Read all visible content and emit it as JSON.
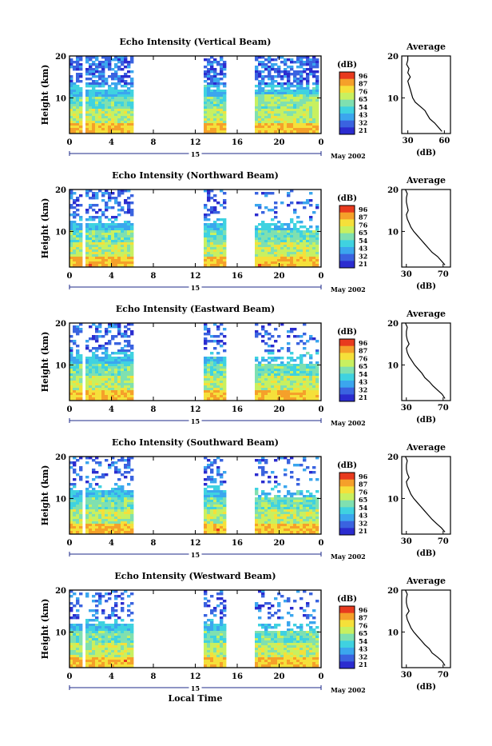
{
  "panels": [
    {
      "title": "Echo Intensity (Vertical Beam)",
      "cbar_ticks": [
        "96",
        "87",
        "76",
        "65",
        "54",
        "43",
        "32",
        "21"
      ],
      "avg_xticks": [
        "30",
        "60"
      ],
      "avg_xrange": [
        25,
        65
      ]
    },
    {
      "title": "Echo Intensity (Northward Beam)",
      "cbar_ticks": [
        "96",
        "87",
        "76",
        "65",
        "54",
        "43",
        "32",
        "21"
      ],
      "avg_xticks": [
        "30",
        "70"
      ],
      "avg_xrange": [
        25,
        78
      ]
    },
    {
      "title": "Echo Intensity (Eastward Beam)",
      "cbar_ticks": [
        "96",
        "87",
        "76",
        "65",
        "54",
        "43",
        "32",
        "21"
      ],
      "avg_xticks": [
        "30",
        "70"
      ],
      "avg_xrange": [
        25,
        78
      ]
    },
    {
      "title": "Echo Intensity (Southward Beam)",
      "cbar_ticks": [
        "96",
        "87",
        "76",
        "65",
        "54",
        "43",
        "32",
        "21"
      ],
      "avg_xticks": [
        "30",
        "70"
      ],
      "avg_xrange": [
        25,
        78
      ]
    },
    {
      "title": "Echo Intensity (Westward Beam)",
      "cbar_ticks": [
        "96",
        "87",
        "76",
        "65",
        "54",
        "43",
        "32",
        "21"
      ],
      "avg_xticks": [
        "30",
        "70"
      ],
      "avg_xrange": [
        25,
        78
      ]
    }
  ],
  "labels": {
    "ylabel": "Height (km)",
    "xlabel": "Local Time",
    "cbar_unit": "(dB)",
    "avg_title": "Average",
    "avg_unit": "(dB)",
    "date": "May 2002",
    "day": "15"
  },
  "chart_data": {
    "type": "heatmap",
    "x_ticks": [
      "0",
      "4",
      "8",
      "12",
      "16",
      "20",
      "0"
    ],
    "y_ticks": [
      "20",
      "10"
    ],
    "x_range_hours": [
      0,
      24
    ],
    "y_range_km": [
      1.5,
      20
    ],
    "data_gaps_hours": [
      [
        1.2,
        1.6
      ],
      [
        6.2,
        13.0
      ],
      [
        15.0,
        17.8
      ]
    ],
    "colorscale": [
      "#2b2ccf",
      "#3a63e0",
      "#3ba6ee",
      "#3fd2e0",
      "#7fe0b0",
      "#c8f060",
      "#f5e03a",
      "#f5a02a",
      "#e83a1e"
    ],
    "colorbar_ticks_db": [
      96,
      87,
      76,
      65,
      54,
      43,
      32,
      21
    ],
    "average_profiles": [
      {
        "beam": "Vertical",
        "height_km": [
          2,
          3,
          4,
          5,
          6,
          7,
          8,
          9,
          10,
          11,
          12,
          13,
          14,
          15,
          16,
          17,
          18,
          19,
          20
        ],
        "db": [
          58,
          55,
          52,
          48,
          46,
          44,
          40,
          36,
          34,
          33,
          32,
          31,
          30,
          32,
          30,
          31,
          29,
          30,
          30
        ]
      },
      {
        "beam": "Northward",
        "height_km": [
          2,
          3,
          4,
          5,
          6,
          7,
          8,
          9,
          10,
          11,
          12,
          13,
          14,
          15,
          16,
          17,
          18,
          19,
          20
        ],
        "db": [
          72,
          68,
          64,
          58,
          54,
          50,
          46,
          42,
          38,
          35,
          33,
          31,
          30,
          32,
          31,
          30,
          30,
          31,
          29
        ]
      },
      {
        "beam": "Eastward",
        "height_km": [
          2,
          3,
          4,
          5,
          6,
          7,
          8,
          9,
          10,
          11,
          12,
          13,
          14,
          15,
          16,
          17,
          18,
          19,
          20
        ],
        "db": [
          72,
          69,
          64,
          59,
          55,
          50,
          47,
          43,
          39,
          36,
          33,
          31,
          30,
          33,
          31,
          30,
          30,
          31,
          29
        ]
      },
      {
        "beam": "Southward",
        "height_km": [
          2,
          3,
          4,
          5,
          6,
          7,
          8,
          9,
          10,
          11,
          12,
          13,
          14,
          15,
          16,
          17,
          18,
          19,
          20
        ],
        "db": [
          72,
          68,
          63,
          58,
          54,
          50,
          46,
          42,
          38,
          35,
          33,
          31,
          30,
          33,
          31,
          30,
          30,
          31,
          29
        ]
      },
      {
        "beam": "Westward",
        "height_km": [
          2,
          3,
          4,
          5,
          6,
          7,
          8,
          9,
          10,
          11,
          12,
          13,
          14,
          15,
          16,
          17,
          18,
          19,
          20
        ],
        "db": [
          72,
          69,
          64,
          58,
          55,
          50,
          46,
          42,
          38,
          35,
          33,
          31,
          30,
          33,
          31,
          30,
          30,
          31,
          29
        ]
      }
    ]
  }
}
